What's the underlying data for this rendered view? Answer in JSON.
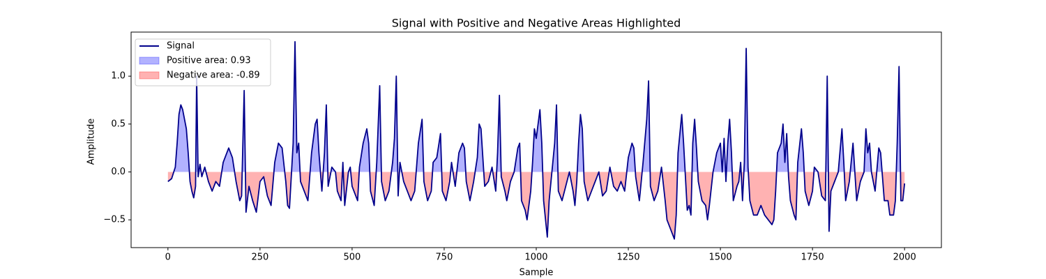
{
  "chart_data": {
    "type": "line",
    "title": "Signal with Positive and Negative Areas Highlighted",
    "x_label": "Sample",
    "y_label": "Amplitude",
    "xlim": [
      -100,
      2100
    ],
    "ylim": [
      -0.79,
      1.46
    ],
    "xticks": [
      0,
      250,
      500,
      750,
      1000,
      1250,
      1500,
      1750,
      2000
    ],
    "yticks": [
      {
        "value": -0.5,
        "label": "−0.5"
      },
      {
        "value": 0,
        "label": "0.0"
      },
      0.5,
      {
        "value": 1,
        "label": "1.0"
      }
    ],
    "legend_position": "upper left",
    "x": [
      0,
      10,
      20,
      25,
      30,
      35,
      40,
      50,
      55,
      60,
      65,
      70,
      75,
      78,
      82,
      87,
      92,
      100,
      110,
      120,
      130,
      140,
      150,
      160,
      165,
      175,
      185,
      195,
      200,
      207,
      212,
      220,
      230,
      240,
      250,
      260,
      270,
      280,
      290,
      300,
      310,
      320,
      325,
      330,
      340,
      345,
      350,
      355,
      360,
      370,
      380,
      390,
      400,
      405,
      410,
      418,
      425,
      430,
      435,
      445,
      455,
      460,
      470,
      475,
      480,
      490,
      495,
      500,
      510,
      515,
      520,
      530,
      540,
      545,
      550,
      560,
      567,
      575,
      580,
      590,
      600,
      610,
      615,
      620,
      625,
      630,
      640,
      650,
      660,
      670,
      680,
      690,
      695,
      705,
      715,
      720,
      730,
      740,
      745,
      755,
      765,
      770,
      780,
      790,
      800,
      805,
      810,
      820,
      830,
      840,
      845,
      850,
      860,
      870,
      880,
      890,
      895,
      900,
      905,
      915,
      920,
      930,
      940,
      950,
      955,
      960,
      970,
      975,
      985,
      990,
      995,
      1000,
      1010,
      1015,
      1020,
      1030,
      1035,
      1040,
      1050,
      1055,
      1060,
      1070,
      1080,
      1090,
      1100,
      1105,
      1110,
      1115,
      1120,
      1125,
      1130,
      1140,
      1150,
      1160,
      1170,
      1180,
      1190,
      1200,
      1210,
      1220,
      1230,
      1240,
      1250,
      1260,
      1265,
      1270,
      1280,
      1290,
      1300,
      1305,
      1310,
      1320,
      1330,
      1340,
      1350,
      1355,
      1365,
      1375,
      1380,
      1385,
      1395,
      1400,
      1410,
      1415,
      1420,
      1425,
      1430,
      1435,
      1440,
      1450,
      1460,
      1465,
      1470,
      1480,
      1490,
      1500,
      1505,
      1510,
      1515,
      1520,
      1525,
      1530,
      1535,
      1545,
      1550,
      1555,
      1560,
      1565,
      1570,
      1575,
      1580,
      1590,
      1600,
      1610,
      1620,
      1630,
      1640,
      1645,
      1650,
      1655,
      1665,
      1670,
      1675,
      1680,
      1685,
      1690,
      1700,
      1705,
      1710,
      1720,
      1725,
      1730,
      1740,
      1750,
      1755,
      1765,
      1775,
      1785,
      1790,
      1795,
      1800,
      1810,
      1820,
      1830,
      1835,
      1840,
      1850,
      1860,
      1870,
      1880,
      1890,
      1895,
      1900,
      1905,
      1910,
      1920,
      1930,
      1935,
      1945,
      1955,
      1960,
      1970,
      1975,
      1980,
      1985,
      1990,
      1995,
      2000
    ],
    "series": [
      {
        "name": "Signal",
        "color": "#00008b",
        "values": [
          -0.1,
          -0.07,
          0.05,
          0.3,
          0.6,
          0.7,
          0.65,
          0.45,
          0.2,
          -0.1,
          -0.2,
          -0.27,
          -0.15,
          1.0,
          -0.05,
          0.08,
          -0.05,
          0.05,
          -0.1,
          -0.2,
          -0.1,
          -0.15,
          0.1,
          0.2,
          0.25,
          0.15,
          -0.1,
          -0.3,
          -0.25,
          0.85,
          -0.42,
          -0.15,
          -0.3,
          -0.42,
          -0.1,
          -0.05,
          -0.25,
          -0.35,
          0.1,
          0.3,
          0.25,
          -0.1,
          -0.35,
          -0.38,
          0.3,
          1.36,
          0.2,
          0.3,
          -0.1,
          -0.2,
          -0.3,
          0.2,
          0.5,
          0.55,
          0.2,
          -0.2,
          0.2,
          0.7,
          -0.15,
          0.05,
          0.0,
          -0.2,
          -0.3,
          0.1,
          -0.35,
          0.0,
          0.05,
          -0.15,
          -0.25,
          -0.3,
          0.05,
          0.3,
          0.45,
          0.3,
          -0.2,
          -0.35,
          0.1,
          0.9,
          -0.1,
          -0.3,
          -0.2,
          0.1,
          0.35,
          1.0,
          -0.25,
          0.1,
          -0.1,
          -0.2,
          -0.3,
          -0.2,
          0.3,
          0.55,
          -0.1,
          -0.3,
          -0.2,
          0.1,
          0.15,
          0.4,
          -0.2,
          -0.3,
          -0.1,
          0.1,
          -0.15,
          0.2,
          0.3,
          0.25,
          -0.1,
          -0.3,
          -0.1,
          0.15,
          0.5,
          0.45,
          -0.15,
          -0.1,
          0.05,
          -0.2,
          0.2,
          0.8,
          -0.05,
          -0.2,
          -0.3,
          -0.1,
          0.0,
          0.25,
          0.3,
          -0.3,
          -0.4,
          -0.5,
          -0.2,
          0.1,
          0.45,
          0.35,
          0.65,
          0.3,
          -0.3,
          -0.68,
          -0.3,
          -0.1,
          0.3,
          0.7,
          -0.2,
          -0.3,
          -0.15,
          0.0,
          -0.2,
          -0.35,
          -0.1,
          0.3,
          0.6,
          0.45,
          -0.1,
          -0.3,
          -0.2,
          -0.1,
          0.0,
          -0.25,
          -0.2,
          0.05,
          -0.15,
          -0.2,
          -0.1,
          -0.2,
          0.15,
          0.3,
          0.25,
          -0.05,
          -0.3,
          0.1,
          0.55,
          0.95,
          -0.15,
          -0.3,
          -0.2,
          0.05,
          -0.3,
          -0.5,
          -0.6,
          -0.7,
          -0.45,
          0.2,
          0.6,
          0.3,
          -0.4,
          -0.35,
          -0.45,
          0.3,
          0.55,
          0.25,
          -0.1,
          -0.3,
          -0.35,
          -0.5,
          -0.35,
          0.0,
          0.2,
          0.3,
          0.0,
          0.35,
          -0.1,
          0.3,
          0.55,
          0.2,
          -0.3,
          -0.15,
          -0.1,
          0.1,
          -0.3,
          0.1,
          1.29,
          0.05,
          -0.3,
          -0.45,
          -0.45,
          -0.35,
          -0.45,
          -0.5,
          -0.55,
          -0.5,
          -0.2,
          0.2,
          0.3,
          0.5,
          0.1,
          0.4,
          -0.05,
          -0.3,
          -0.45,
          -0.5,
          0.1,
          0.45,
          0.2,
          -0.2,
          -0.35,
          -0.2,
          0.05,
          0.0,
          -0.25,
          -0.3,
          1.0,
          -0.62,
          -0.2,
          -0.1,
          0.0,
          0.45,
          0.1,
          -0.3,
          -0.1,
          0.3,
          -0.3,
          -0.1,
          0.0,
          0.45,
          0.2,
          0.3,
          0.0,
          -0.2,
          0.25,
          0.2,
          -0.3,
          -0.3,
          -0.45,
          -0.45,
          -0.3,
          0.3,
          1.1,
          -0.3,
          -0.3,
          -0.12
        ]
      }
    ],
    "areas": [
      {
        "name": "Positive area: 0.93",
        "color": "#0000ff"
      },
      {
        "name": "Negative area: -0.89",
        "color": "#ff0000"
      }
    ]
  }
}
